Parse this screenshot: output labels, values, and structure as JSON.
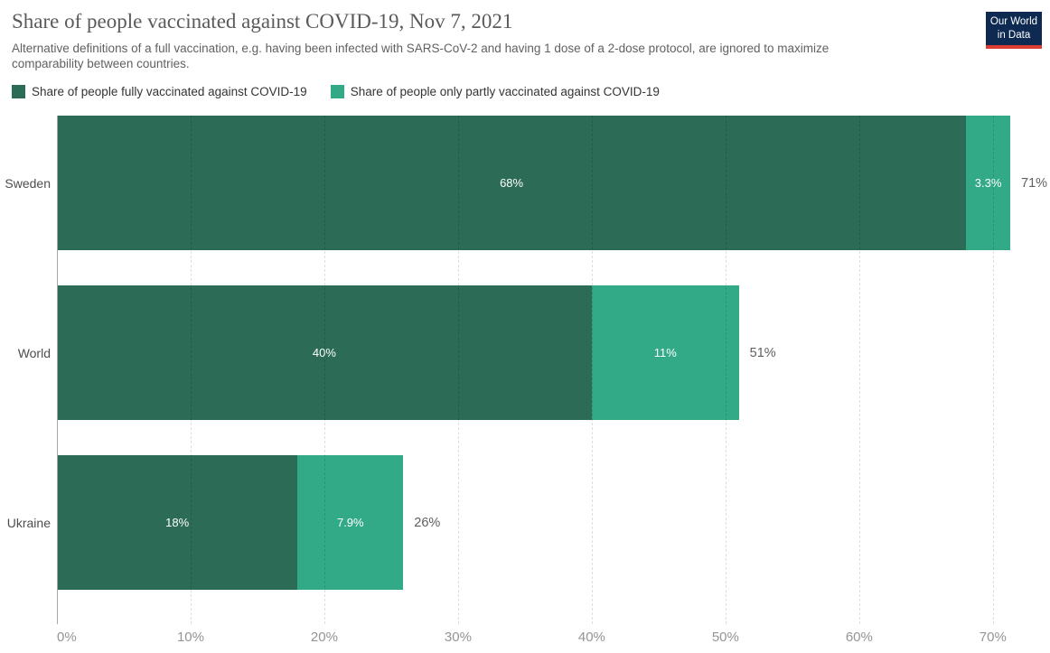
{
  "header": {
    "title": "Share of people vaccinated against COVID-19, Nov 7, 2021",
    "subtitle": "Alternative definitions of a full vaccination, e.g. having been infected with SARS-CoV-2 and having 1 dose of a 2-dose protocol, are ignored to maximize comparability between countries.",
    "logo": {
      "line1": "Our World",
      "line2": "in Data"
    }
  },
  "colors": {
    "fully_vaccinated": "#2c6b56",
    "partly_vaccinated": "#32aa87",
    "logo_bg": "#0e2a52",
    "logo_stripe": "#dc3d33"
  },
  "chart_data": {
    "type": "bar",
    "orientation": "horizontal",
    "stacked": true,
    "title": "Share of people vaccinated against COVID-19, Nov 7, 2021",
    "categories": [
      "Sweden",
      "World",
      "Ukraine"
    ],
    "series": [
      {
        "name": "Share of people fully vaccinated against COVID-19",
        "color": "#2c6b56",
        "values": [
          68,
          40,
          18
        ],
        "labels": [
          "68%",
          "40%",
          "18%"
        ]
      },
      {
        "name": "Share of people only partly vaccinated against COVID-19",
        "color": "#32aa87",
        "values": [
          3.3,
          11,
          7.9
        ],
        "labels": [
          "3.3%",
          "11%",
          "7.9%"
        ]
      }
    ],
    "totals": [
      "71%",
      "51%",
      "26%"
    ],
    "xlim": [
      0,
      74
    ],
    "x_ticks": [
      {
        "value": 0,
        "label": "0%"
      },
      {
        "value": 10,
        "label": "10%"
      },
      {
        "value": 20,
        "label": "20%"
      },
      {
        "value": 30,
        "label": "30%"
      },
      {
        "value": 40,
        "label": "40%"
      },
      {
        "value": 50,
        "label": "50%"
      },
      {
        "value": 60,
        "label": "60%"
      },
      {
        "value": 70,
        "label": "70%"
      }
    ],
    "grid": "vertical-dashed",
    "legend_position": "top"
  }
}
